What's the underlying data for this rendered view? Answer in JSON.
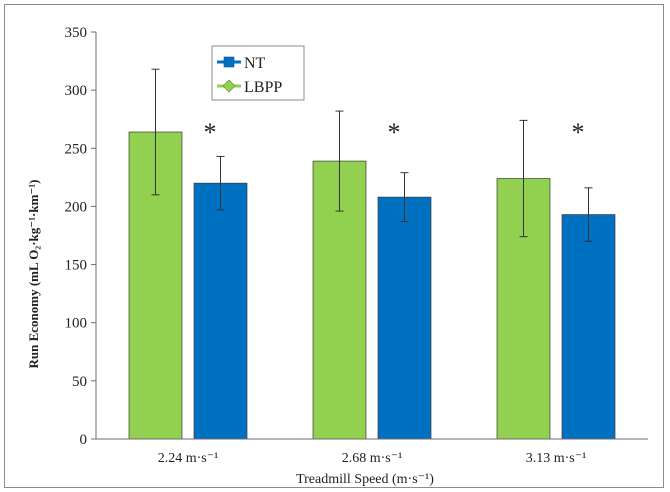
{
  "chart_data": {
    "type": "bar",
    "xlabel": "Treadmill Speed (m·s⁻¹)",
    "ylabel": "Run Economy (mL O₂·kg⁻¹·km⁻¹)",
    "ylim": [
      0,
      350
    ],
    "yticks": [
      "0",
      "50",
      "100",
      "150",
      "200",
      "250",
      "300",
      "350"
    ],
    "categories": [
      "2.24 m·s⁻¹",
      "2.68 m·s⁻¹",
      "3.13 m·s⁻¹"
    ],
    "series": [
      {
        "name": "LBPP",
        "color": "#92d050",
        "values": [
          264,
          239,
          224
        ],
        "error": [
          54,
          43,
          50
        ]
      },
      {
        "name": "NT",
        "color": "#0070c0",
        "values": [
          220,
          208,
          193
        ],
        "error": [
          23,
          21,
          23
        ]
      }
    ],
    "annotations": [
      "*",
      "*",
      "*"
    ],
    "legend_order": [
      "NT",
      "LBPP"
    ],
    "legend_position": "top-left",
    "grid": false
  }
}
